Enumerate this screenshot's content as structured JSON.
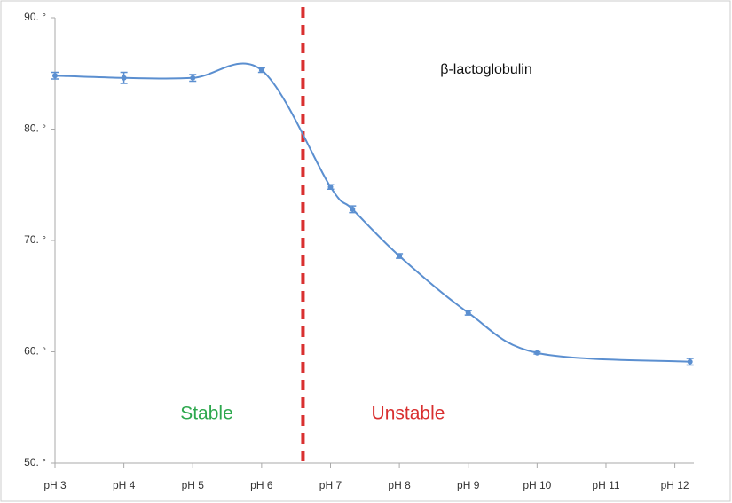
{
  "chart_data": {
    "type": "line",
    "annotations": [
      "β-lactoglobulin",
      "Stable",
      "Unstable"
    ],
    "divider_x": 6.6,
    "x": [
      3,
      4,
      5,
      6,
      7,
      7.32,
      8,
      9,
      10,
      12.22
    ],
    "series": [
      {
        "color": "#5b8fd0",
        "values": [
          84.8,
          84.6,
          84.6,
          85.3,
          74.8,
          72.8,
          68.6,
          63.5,
          59.9,
          59.1
        ],
        "errors": [
          0.3,
          0.5,
          0.3,
          0.2,
          0.2,
          0.3,
          0.2,
          0.2,
          0.1,
          0.3
        ]
      }
    ],
    "xlim": [
      3,
      12.25
    ],
    "xticks": [
      {
        "value": 3,
        "label": "pH 3"
      },
      {
        "value": 4,
        "label": "pH 4"
      },
      {
        "value": 5,
        "label": "pH 5"
      },
      {
        "value": 6,
        "label": "pH 6"
      },
      {
        "value": 7,
        "label": "pH 7"
      },
      {
        "value": 8,
        "label": "pH 8"
      },
      {
        "value": 9,
        "label": "pH 9"
      },
      {
        "value": 10,
        "label": "pH 10"
      },
      {
        "value": 11,
        "label": "pH 11"
      },
      {
        "value": 12,
        "label": "pH 12"
      }
    ],
    "ylim": [
      50,
      90
    ],
    "yticks": [
      {
        "value": 50,
        "label": "50. °"
      },
      {
        "value": 60,
        "label": "60. °"
      },
      {
        "value": 70,
        "label": "70. °"
      },
      {
        "value": 80,
        "label": "80. °"
      },
      {
        "value": 90,
        "label": "90. °"
      }
    ],
    "grid": false
  }
}
